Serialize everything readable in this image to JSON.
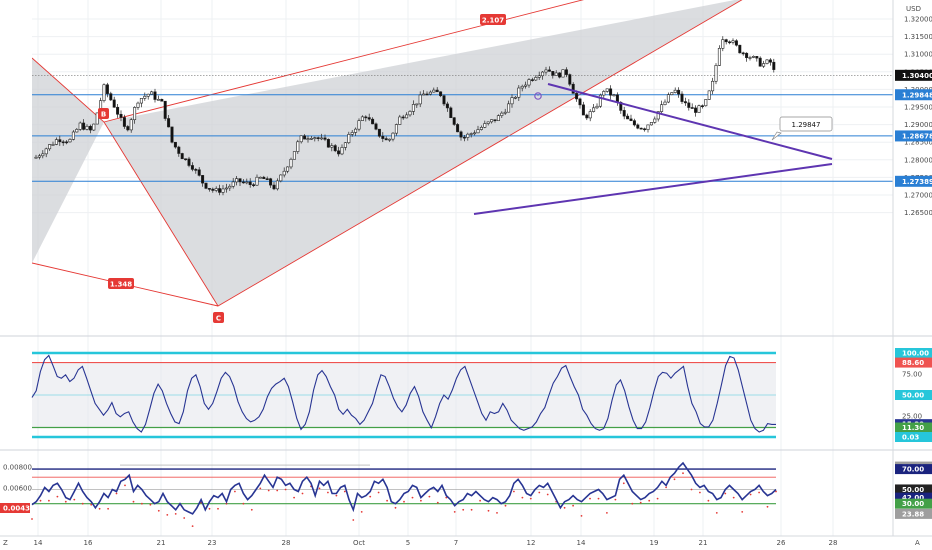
{
  "currency": "USD",
  "colors": {
    "background": "#ffffff",
    "grid": "#eef0f3",
    "up": "#4a4a4a",
    "down": "#111111",
    "blue_level": "#2a7fd4",
    "harmonic": "#e53935",
    "triangle": "#5e35b1",
    "osc_line": "#283593",
    "cyan": "#26c6da",
    "red_line": "#ef5350",
    "green_line": "#43a047",
    "last_price_bg": "#111111"
  },
  "price_axis": {
    "ticks": [
      "1.32000",
      "1.31500",
      "1.31000",
      "1.30500",
      "1.30000",
      "1.29500",
      "1.29000",
      "1.28500",
      "1.28000",
      "1.27500",
      "1.27000",
      "1.26500"
    ],
    "last_price": "1.30400",
    "levels": [
      {
        "label": "1.29848",
        "price": 1.29848
      },
      {
        "label": "1.28678",
        "price": 1.28678
      },
      {
        "label": "1.27389",
        "price": 1.27389
      }
    ]
  },
  "date_axis": {
    "labels": [
      "14",
      "16",
      "21",
      "23",
      "28",
      "Oct",
      "5",
      "7",
      "12",
      "14",
      "19",
      "21",
      "26",
      "28"
    ],
    "scale_button": "A"
  },
  "harmonic": {
    "point_b": "B",
    "point_c": "C",
    "ratio_bc": "1.348",
    "ratio_top": "2.107"
  },
  "callout": "1.29847",
  "oscillator1": {
    "tags": [
      "100.00",
      "88.60",
      "75.00",
      "50.00",
      "25.00",
      "15.29",
      "11.30",
      "0.03"
    ],
    "values": [
      47,
      55,
      78,
      92,
      97,
      85,
      72,
      70,
      74,
      66,
      70,
      80,
      84,
      70,
      55,
      40,
      33,
      26,
      32,
      41,
      28,
      24,
      28,
      30,
      18,
      10,
      6,
      15,
      33,
      52,
      63,
      55,
      40,
      28,
      18,
      16,
      30,
      55,
      70,
      74,
      60,
      40,
      33,
      40,
      54,
      70,
      77,
      72,
      60,
      42,
      30,
      22,
      18,
      20,
      24,
      33,
      48,
      58,
      63,
      66,
      70,
      60,
      42,
      22,
      9,
      15,
      30,
      56,
      74,
      79,
      72,
      60,
      50,
      33,
      27,
      33,
      26,
      22,
      15,
      20,
      30,
      40,
      58,
      74,
      72,
      60,
      46,
      36,
      30,
      38,
      52,
      60,
      48,
      30,
      20,
      11,
      24,
      40,
      50,
      45,
      56,
      70,
      80,
      84,
      70,
      56,
      42,
      28,
      20,
      30,
      28,
      30,
      40,
      32,
      20,
      15,
      10,
      8,
      10,
      12,
      18,
      28,
      35,
      50,
      64,
      72,
      82,
      85,
      72,
      60,
      50,
      33,
      26,
      16,
      10,
      8,
      10,
      22,
      44,
      62,
      68,
      55,
      36,
      20,
      10,
      10,
      18,
      35,
      55,
      72,
      77,
      76,
      70,
      76,
      80,
      84,
      60,
      40,
      30,
      16,
      12,
      12,
      20,
      40,
      62,
      85,
      96,
      94,
      80,
      60,
      40,
      20,
      10,
      6,
      8,
      16,
      15,
      15
    ]
  },
  "oscillator2": {
    "tags": [
      "0.00800",
      "0.00600",
      "0.00434",
      "0.00400"
    ],
    "right_tags": [
      "72.46",
      "70.00",
      "50.00",
      "42.00",
      "30.00",
      "23.88"
    ],
    "values": [
      35,
      38,
      44,
      52,
      48,
      54,
      56,
      50,
      42,
      40,
      48,
      56,
      48,
      42,
      38,
      32,
      38,
      46,
      42,
      50,
      48,
      58,
      60,
      64,
      48,
      54,
      50,
      44,
      40,
      36,
      38,
      46,
      38,
      34,
      30,
      36,
      30,
      28,
      26,
      32,
      40,
      30,
      38,
      44,
      42,
      46,
      38,
      50,
      54,
      56,
      46,
      40,
      44,
      50,
      56,
      64,
      58,
      52,
      62,
      60,
      54,
      56,
      50,
      48,
      58,
      62,
      56,
      44,
      58,
      54,
      58,
      46,
      46,
      52,
      54,
      40,
      30,
      46,
      42,
      44,
      48,
      58,
      56,
      60,
      52,
      38,
      36,
      40,
      46,
      48,
      54,
      52,
      42,
      46,
      50,
      52,
      48,
      54,
      44,
      40,
      34,
      38,
      40,
      46,
      44,
      48,
      44,
      40,
      38,
      42,
      40,
      36,
      38,
      44,
      56,
      60,
      54,
      46,
      44,
      50,
      54,
      52,
      56,
      48,
      40,
      32,
      38,
      40,
      44,
      40,
      38,
      42,
      46,
      48,
      50,
      46,
      40,
      42,
      44,
      60,
      64,
      56,
      48,
      44,
      40,
      42,
      46,
      48,
      52,
      58,
      54,
      62,
      66,
      72,
      76,
      70,
      64,
      56,
      52,
      54,
      48,
      46,
      40,
      42,
      50,
      54,
      50,
      46,
      40,
      44,
      48,
      50,
      54,
      48,
      44,
      46,
      50
    ]
  }
}
